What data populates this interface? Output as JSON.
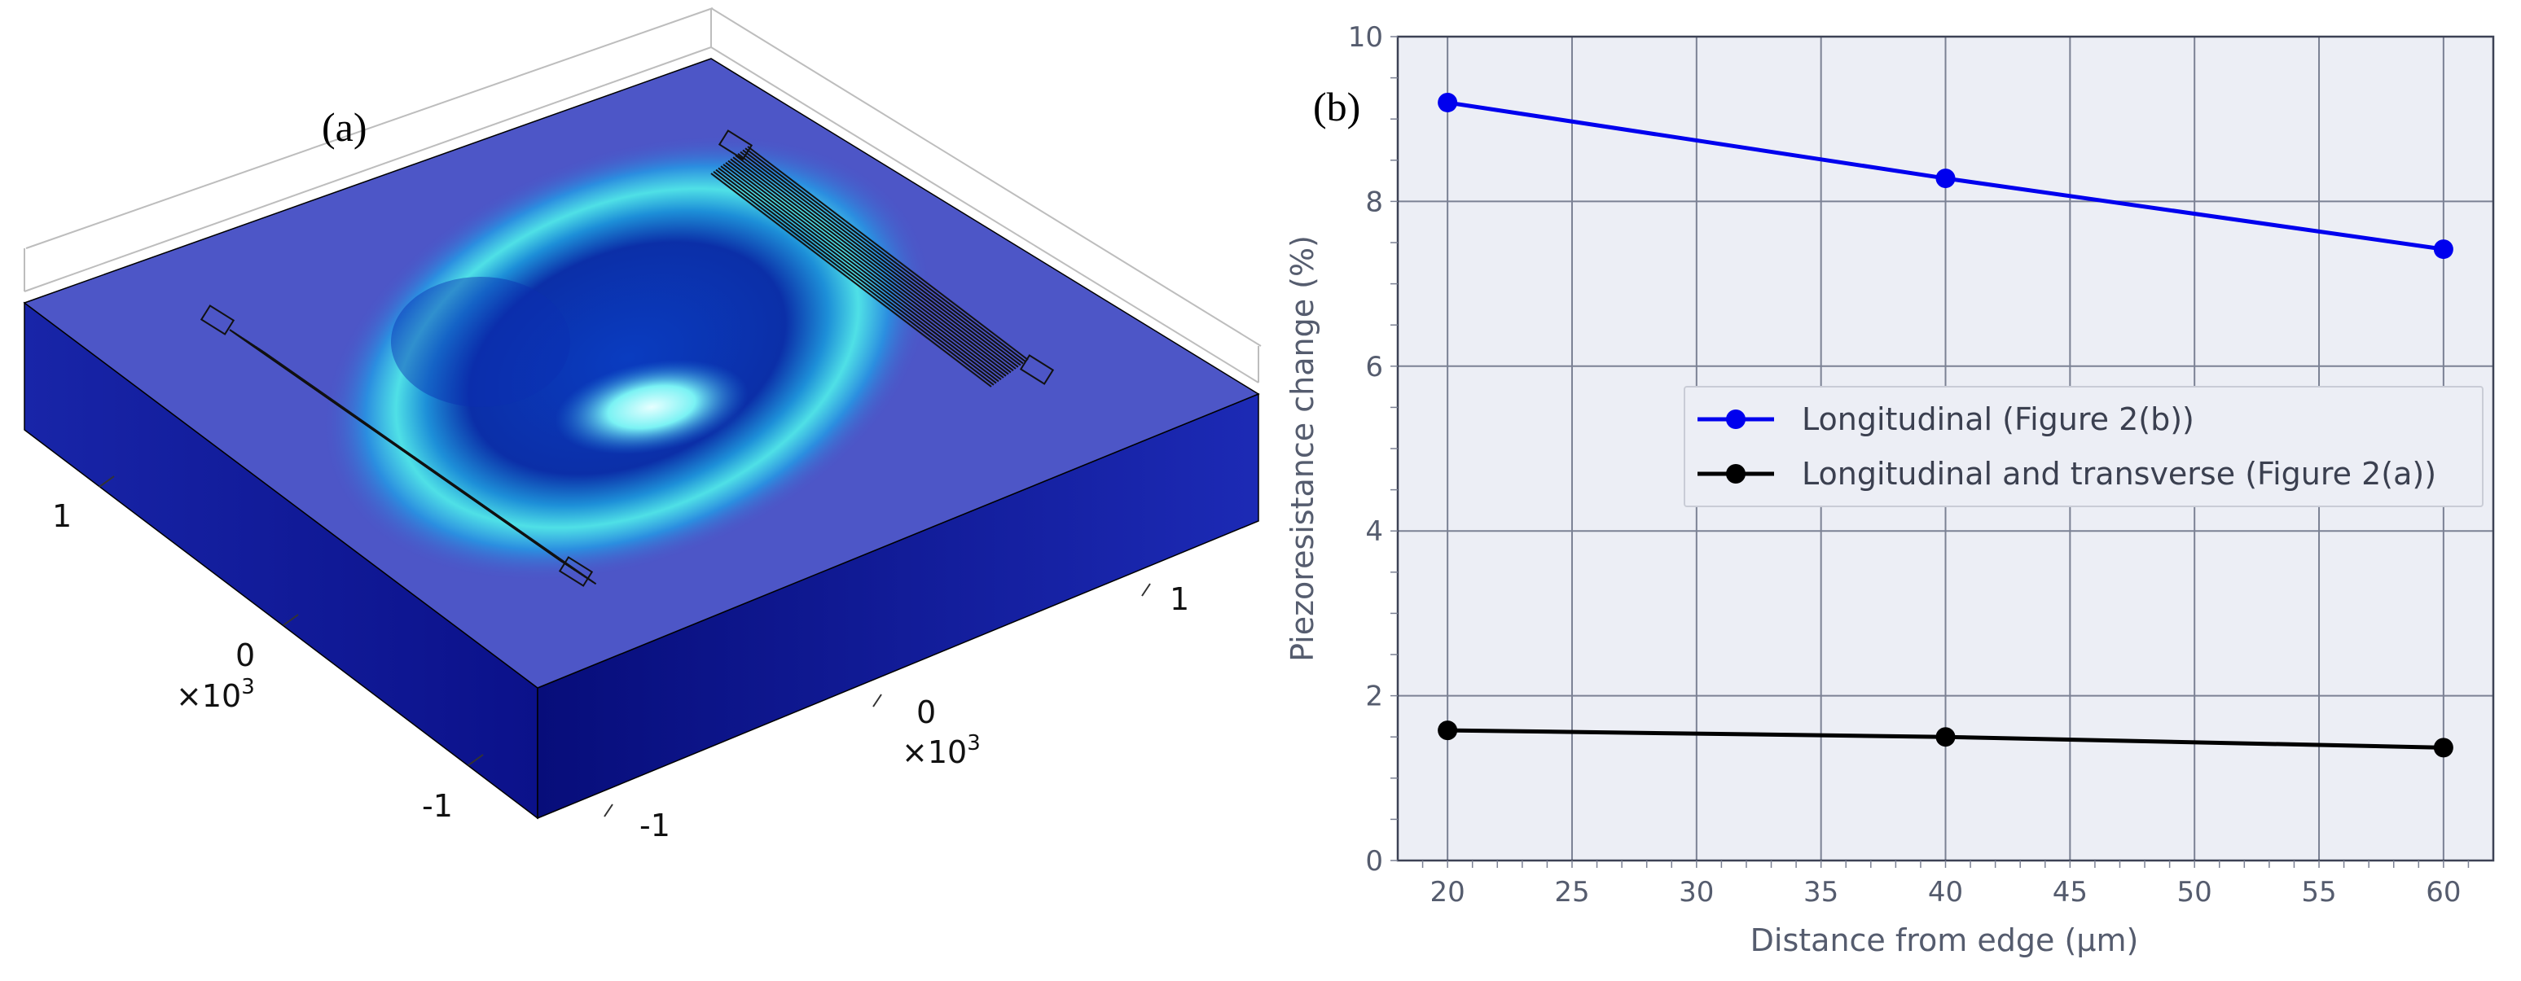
{
  "panel_a": {
    "label": "(a)",
    "axis_ticks_left": [
      "1",
      "0",
      "-1"
    ],
    "axis_ticks_right": [
      "1",
      "0",
      "-1"
    ],
    "multiplier_left": "×10",
    "multiplier_right": "×10",
    "multiplier_exponent": "3"
  },
  "panel_b": {
    "label": "(b)"
  },
  "chart_data": {
    "type": "line",
    "title": "",
    "xlabel": "Distance from edge (μm)",
    "ylabel": "Piezoresistance change (%)",
    "xlim": [
      18,
      62
    ],
    "ylim": [
      0,
      10
    ],
    "xticks": [
      20,
      25,
      30,
      35,
      40,
      45,
      50,
      55,
      60
    ],
    "yticks": [
      0,
      2,
      4,
      6,
      8,
      10
    ],
    "grid": true,
    "legend_position": "center-right",
    "x": [
      20,
      40,
      60
    ],
    "series": [
      {
        "name": "Longitudinal (Figure 2(b))",
        "values": [
          9.2,
          8.28,
          7.42
        ],
        "color": "#0000ee"
      },
      {
        "name": "Longitudinal and transverse (Figure 2(a))",
        "values": [
          1.58,
          1.5,
          1.37
        ],
        "color": "#000000"
      }
    ],
    "colors": {
      "plot_background": "#eceef5",
      "grid": "#7b8194",
      "axis_text": "#555c6e"
    }
  }
}
